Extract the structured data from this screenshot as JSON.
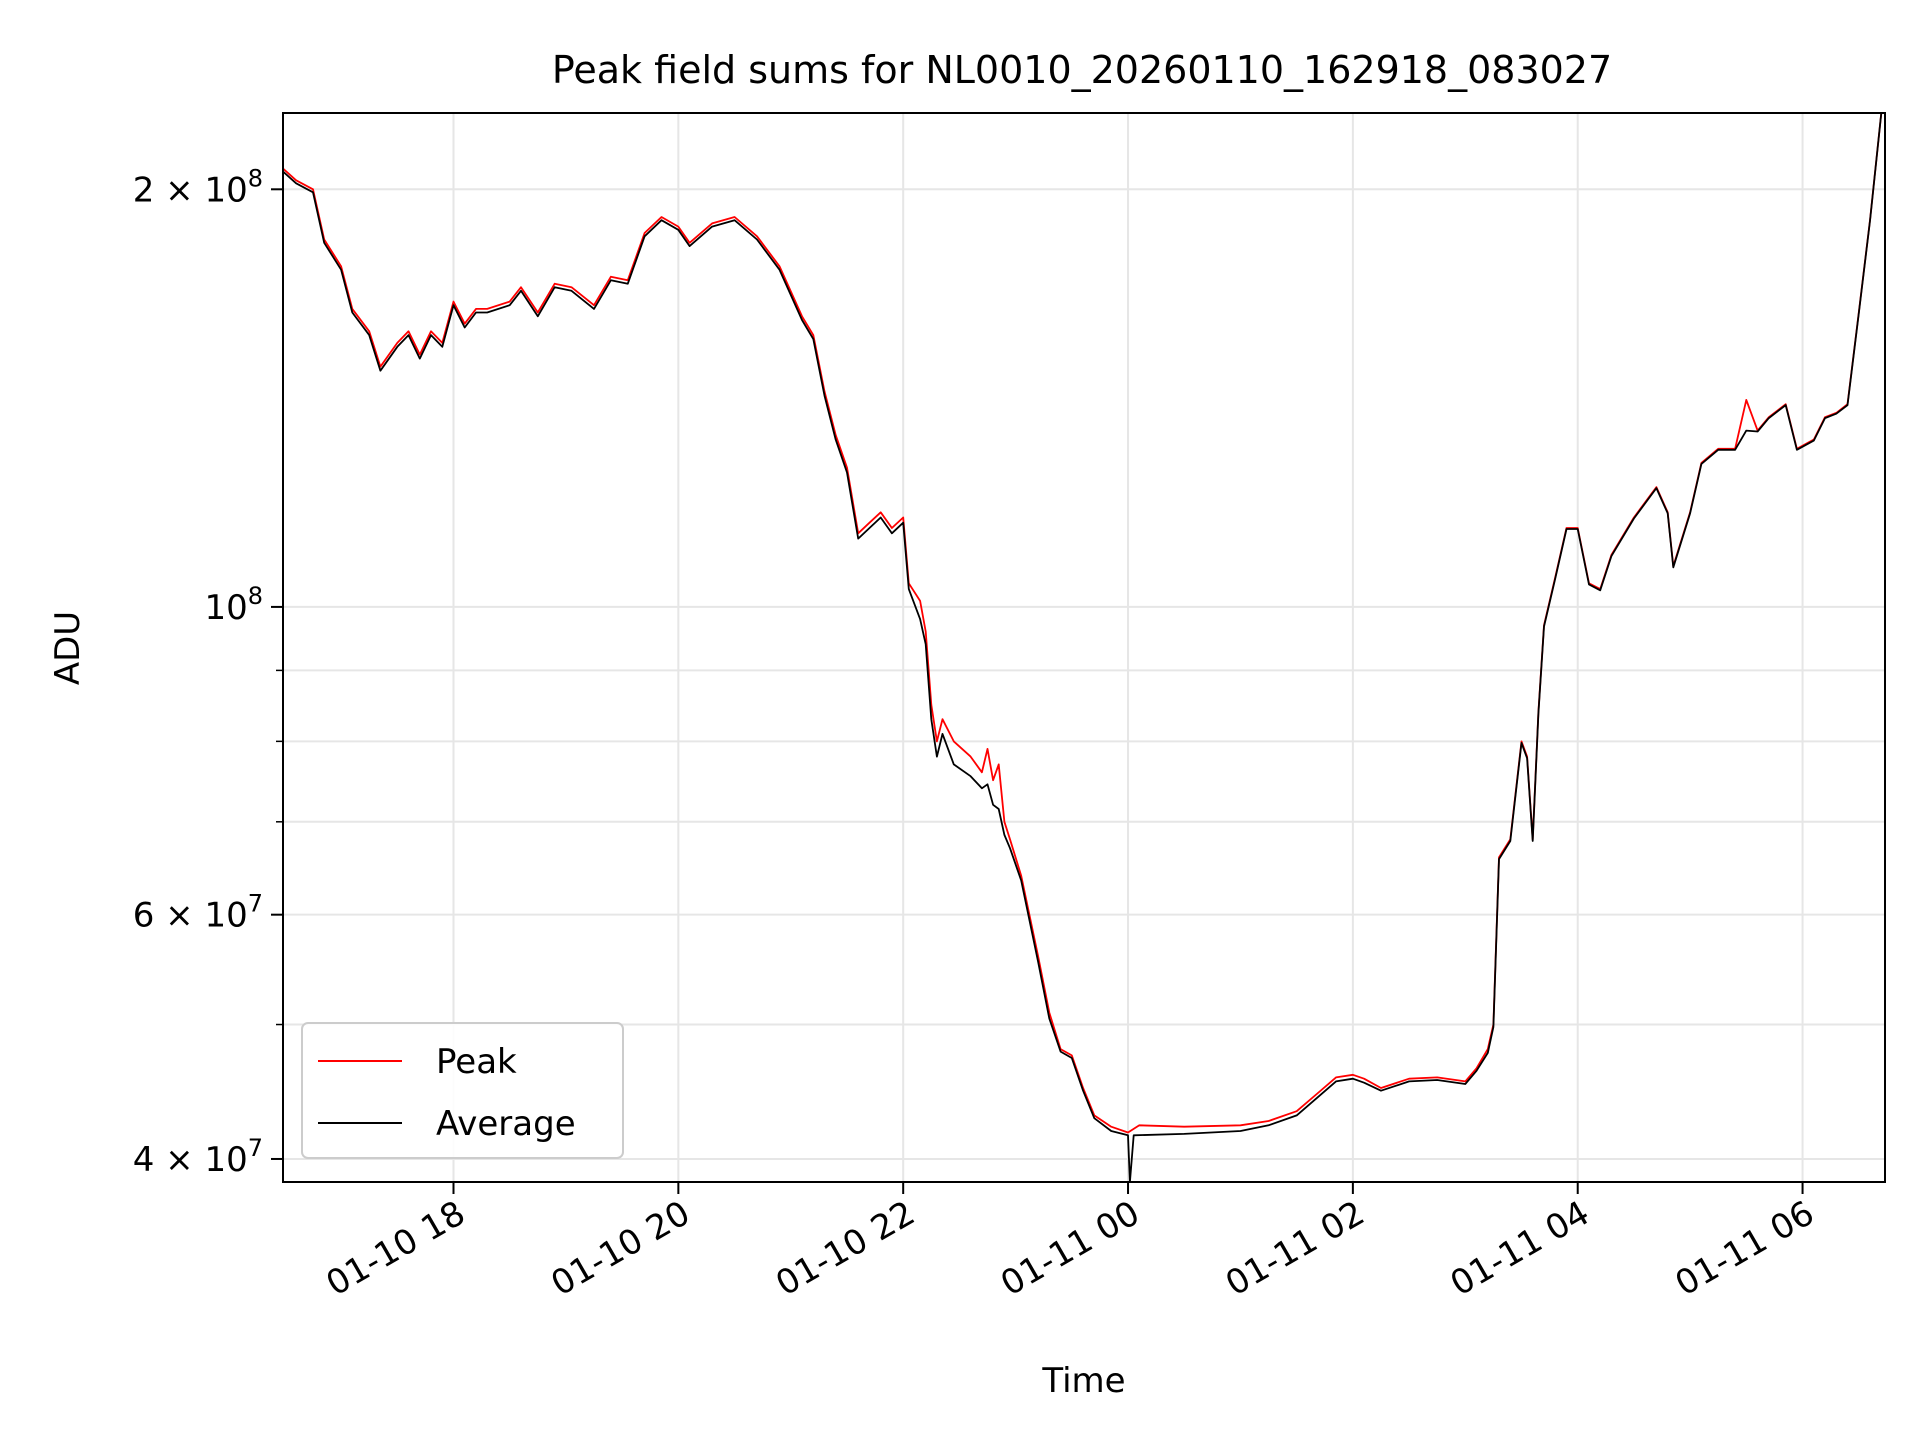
{
  "chart_data": {
    "type": "line",
    "title": "Peak field sums for NL0010_20260110_162918_083027",
    "xlabel": "Time",
    "ylabel": "ADU",
    "yscale": "log",
    "grid": true,
    "legend_position": "lower-left",
    "xlim": [
      "2026-01-10 16:29",
      "2026-01-11 06:44"
    ],
    "ylim": [
      38500000,
      227000000
    ],
    "x_ticks": [
      {
        "t": "2026-01-10 18:00",
        "label": "01-10 18"
      },
      {
        "t": "2026-01-10 20:00",
        "label": "01-10 20"
      },
      {
        "t": "2026-01-10 22:00",
        "label": "01-10 22"
      },
      {
        "t": "2026-01-11 00:00",
        "label": "01-11 00"
      },
      {
        "t": "2026-01-11 02:00",
        "label": "01-11 02"
      },
      {
        "t": "2026-01-11 04:00",
        "label": "01-11 04"
      },
      {
        "t": "2026-01-11 06:00",
        "label": "01-11 06"
      }
    ],
    "y_major_ticks": [
      {
        "value": 40000000,
        "mantissa": "4",
        "exponent": "7"
      },
      {
        "value": 60000000,
        "mantissa": "6",
        "exponent": "7"
      },
      {
        "value": 100000000,
        "mantissa": "",
        "exponent": "8"
      },
      {
        "value": 200000000,
        "mantissa": "2",
        "exponent": "8"
      }
    ],
    "y_minor_ticks": [
      50000000,
      70000000,
      80000000,
      90000000
    ],
    "series": [
      {
        "name": "Peak",
        "color": "#ff0000",
        "points": [
          [
            "2026-01-10 16:29",
            207000000
          ],
          [
            "2026-01-10 16:36",
            203000000
          ],
          [
            "2026-01-10 16:45",
            200000000
          ],
          [
            "2026-01-10 16:51",
            184000000
          ],
          [
            "2026-01-10 17:00",
            176000000
          ],
          [
            "2026-01-10 17:06",
            164000000
          ],
          [
            "2026-01-10 17:15",
            158000000
          ],
          [
            "2026-01-10 17:21",
            149000000
          ],
          [
            "2026-01-10 17:30",
            155000000
          ],
          [
            "2026-01-10 17:36",
            158000000
          ],
          [
            "2026-01-10 17:42",
            152000000
          ],
          [
            "2026-01-10 17:48",
            158000000
          ],
          [
            "2026-01-10 17:54",
            155000000
          ],
          [
            "2026-01-10 18:00",
            166000000
          ],
          [
            "2026-01-10 18:06",
            160000000
          ],
          [
            "2026-01-10 18:12",
            164000000
          ],
          [
            "2026-01-10 18:18",
            164000000
          ],
          [
            "2026-01-10 18:30",
            166000000
          ],
          [
            "2026-01-10 18:36",
            170000000
          ],
          [
            "2026-01-10 18:45",
            163000000
          ],
          [
            "2026-01-10 18:54",
            171000000
          ],
          [
            "2026-01-10 19:03",
            170000000
          ],
          [
            "2026-01-10 19:15",
            165000000
          ],
          [
            "2026-01-10 19:24",
            173000000
          ],
          [
            "2026-01-10 19:33",
            172000000
          ],
          [
            "2026-01-10 19:42",
            186000000
          ],
          [
            "2026-01-10 19:51",
            191000000
          ],
          [
            "2026-01-10 20:00",
            188000000
          ],
          [
            "2026-01-10 20:06",
            183000000
          ],
          [
            "2026-01-10 20:18",
            189000000
          ],
          [
            "2026-01-10 20:30",
            191000000
          ],
          [
            "2026-01-10 20:42",
            185000000
          ],
          [
            "2026-01-10 20:54",
            176000000
          ],
          [
            "2026-01-10 21:06",
            162000000
          ],
          [
            "2026-01-10 21:12",
            157000000
          ],
          [
            "2026-01-10 21:18",
            143000000
          ],
          [
            "2026-01-10 21:24",
            133000000
          ],
          [
            "2026-01-10 21:30",
            126000000
          ],
          [
            "2026-01-10 21:36",
            113000000
          ],
          [
            "2026-01-10 21:42",
            115000000
          ],
          [
            "2026-01-10 21:48",
            117000000
          ],
          [
            "2026-01-10 21:54",
            114000000
          ],
          [
            "2026-01-10 22:00",
            116000000
          ],
          [
            "2026-01-10 22:03",
            104000000
          ],
          [
            "2026-01-10 22:09",
            101000000
          ],
          [
            "2026-01-10 22:12",
            96000000
          ],
          [
            "2026-01-10 22:15",
            85000000
          ],
          [
            "2026-01-10 22:18",
            80000000
          ],
          [
            "2026-01-10 22:21",
            83000000
          ],
          [
            "2026-01-10 22:27",
            80000000
          ],
          [
            "2026-01-10 22:36",
            78000000
          ],
          [
            "2026-01-10 22:42",
            76000000
          ],
          [
            "2026-01-10 22:45",
            79000000
          ],
          [
            "2026-01-10 22:48",
            75000000
          ],
          [
            "2026-01-10 22:51",
            77000000
          ],
          [
            "2026-01-10 22:54",
            70000000
          ],
          [
            "2026-01-10 22:57",
            68000000
          ],
          [
            "2026-01-10 23:03",
            64000000
          ],
          [
            "2026-01-10 23:12",
            56000000
          ],
          [
            "2026-01-10 23:18",
            51000000
          ],
          [
            "2026-01-10 23:24",
            48000000
          ],
          [
            "2026-01-10 23:30",
            47500000
          ],
          [
            "2026-01-10 23:36",
            45000000
          ],
          [
            "2026-01-10 23:42",
            43000000
          ],
          [
            "2026-01-10 23:51",
            42200000
          ],
          [
            "2026-01-11 00:00",
            41800000
          ],
          [
            "2026-01-11 00:06",
            42300000
          ],
          [
            "2026-01-11 00:30",
            42200000
          ],
          [
            "2026-01-11 01:00",
            42300000
          ],
          [
            "2026-01-11 01:15",
            42600000
          ],
          [
            "2026-01-11 01:30",
            43300000
          ],
          [
            "2026-01-11 01:42",
            44700000
          ],
          [
            "2026-01-11 01:51",
            45800000
          ],
          [
            "2026-01-11 02:00",
            46000000
          ],
          [
            "2026-01-11 02:06",
            45700000
          ],
          [
            "2026-01-11 02:15",
            45000000
          ],
          [
            "2026-01-11 02:30",
            45700000
          ],
          [
            "2026-01-11 02:45",
            45800000
          ],
          [
            "2026-01-11 03:00",
            45500000
          ],
          [
            "2026-01-11 03:06",
            46500000
          ],
          [
            "2026-01-11 03:12",
            48000000
          ],
          [
            "2026-01-11 03:15",
            50000000
          ],
          [
            "2026-01-11 03:18",
            66000000
          ],
          [
            "2026-01-11 03:24",
            68000000
          ],
          [
            "2026-01-11 03:30",
            80000000
          ],
          [
            "2026-01-11 03:33",
            78000000
          ],
          [
            "2026-01-11 03:36",
            68000000
          ],
          [
            "2026-01-11 03:39",
            84000000
          ],
          [
            "2026-01-11 03:42",
            97000000
          ],
          [
            "2026-01-11 03:48",
            105000000
          ],
          [
            "2026-01-11 03:54",
            114000000
          ],
          [
            "2026-01-11 04:00",
            114000000
          ],
          [
            "2026-01-11 04:06",
            104000000
          ],
          [
            "2026-01-11 04:12",
            103000000
          ],
          [
            "2026-01-11 04:18",
            109000000
          ],
          [
            "2026-01-11 04:30",
            116000000
          ],
          [
            "2026-01-11 04:42",
            122000000
          ],
          [
            "2026-01-11 04:48",
            117000000
          ],
          [
            "2026-01-11 04:51",
            107000000
          ],
          [
            "2026-01-11 05:00",
            117000000
          ],
          [
            "2026-01-11 05:06",
            127000000
          ],
          [
            "2026-01-11 05:15",
            130000000
          ],
          [
            "2026-01-11 05:24",
            130000000
          ],
          [
            "2026-01-11 05:30",
            141000000
          ],
          [
            "2026-01-11 05:36",
            134000000
          ],
          [
            "2026-01-11 05:42",
            137000000
          ],
          [
            "2026-01-11 05:51",
            140000000
          ],
          [
            "2026-01-11 05:57",
            130000000
          ],
          [
            "2026-01-11 06:06",
            132000000
          ],
          [
            "2026-01-11 06:12",
            137000000
          ],
          [
            "2026-01-11 06:18",
            138000000
          ],
          [
            "2026-01-11 06:24",
            140000000
          ],
          [
            "2026-01-11 06:30",
            163000000
          ],
          [
            "2026-01-11 06:36",
            190000000
          ],
          [
            "2026-01-11 06:42",
            227000000
          ]
        ]
      },
      {
        "name": "Average",
        "color": "#000000",
        "points": [
          [
            "2026-01-10 16:29",
            206000000
          ],
          [
            "2026-01-10 16:36",
            202000000
          ],
          [
            "2026-01-10 16:45",
            199000000
          ],
          [
            "2026-01-10 16:51",
            183000000
          ],
          [
            "2026-01-10 17:00",
            175000000
          ],
          [
            "2026-01-10 17:06",
            163000000
          ],
          [
            "2026-01-10 17:15",
            157000000
          ],
          [
            "2026-01-10 17:21",
            148000000
          ],
          [
            "2026-01-10 17:30",
            154000000
          ],
          [
            "2026-01-10 17:36",
            157000000
          ],
          [
            "2026-01-10 17:42",
            151000000
          ],
          [
            "2026-01-10 17:48",
            157000000
          ],
          [
            "2026-01-10 17:54",
            154000000
          ],
          [
            "2026-01-10 18:00",
            165000000
          ],
          [
            "2026-01-10 18:06",
            159000000
          ],
          [
            "2026-01-10 18:12",
            163000000
          ],
          [
            "2026-01-10 18:18",
            163000000
          ],
          [
            "2026-01-10 18:30",
            165000000
          ],
          [
            "2026-01-10 18:36",
            169000000
          ],
          [
            "2026-01-10 18:45",
            162000000
          ],
          [
            "2026-01-10 18:54",
            170000000
          ],
          [
            "2026-01-10 19:03",
            169000000
          ],
          [
            "2026-01-10 19:15",
            164000000
          ],
          [
            "2026-01-10 19:24",
            172000000
          ],
          [
            "2026-01-10 19:33",
            171000000
          ],
          [
            "2026-01-10 19:42",
            185000000
          ],
          [
            "2026-01-10 19:51",
            190000000
          ],
          [
            "2026-01-10 20:00",
            187000000
          ],
          [
            "2026-01-10 20:06",
            182000000
          ],
          [
            "2026-01-10 20:18",
            188000000
          ],
          [
            "2026-01-10 20:30",
            190000000
          ],
          [
            "2026-01-10 20:42",
            184000000
          ],
          [
            "2026-01-10 20:54",
            175000000
          ],
          [
            "2026-01-10 21:06",
            161000000
          ],
          [
            "2026-01-10 21:12",
            156000000
          ],
          [
            "2026-01-10 21:18",
            142000000
          ],
          [
            "2026-01-10 21:24",
            132000000
          ],
          [
            "2026-01-10 21:30",
            125000000
          ],
          [
            "2026-01-10 21:36",
            112000000
          ],
          [
            "2026-01-10 21:42",
            114000000
          ],
          [
            "2026-01-10 21:48",
            116000000
          ],
          [
            "2026-01-10 21:54",
            113000000
          ],
          [
            "2026-01-10 22:00",
            115000000
          ],
          [
            "2026-01-10 22:03",
            103000000
          ],
          [
            "2026-01-10 22:09",
            98000000
          ],
          [
            "2026-01-10 22:12",
            94000000
          ],
          [
            "2026-01-10 22:15",
            83000000
          ],
          [
            "2026-01-10 22:18",
            78000000
          ],
          [
            "2026-01-10 22:21",
            81000000
          ],
          [
            "2026-01-10 22:27",
            77000000
          ],
          [
            "2026-01-10 22:36",
            75500000
          ],
          [
            "2026-01-10 22:42",
            74000000
          ],
          [
            "2026-01-10 22:45",
            74500000
          ],
          [
            "2026-01-10 22:48",
            72000000
          ],
          [
            "2026-01-10 22:51",
            71500000
          ],
          [
            "2026-01-10 22:54",
            68500000
          ],
          [
            "2026-01-10 22:57",
            67000000
          ],
          [
            "2026-01-10 23:03",
            63500000
          ],
          [
            "2026-01-10 23:12",
            55500000
          ],
          [
            "2026-01-10 23:18",
            50500000
          ],
          [
            "2026-01-10 23:24",
            47800000
          ],
          [
            "2026-01-10 23:30",
            47300000
          ],
          [
            "2026-01-10 23:36",
            44800000
          ],
          [
            "2026-01-10 23:42",
            42800000
          ],
          [
            "2026-01-10 23:51",
            41900000
          ],
          [
            "2026-01-11 00:00",
            41600000
          ],
          [
            "2026-01-11 00:01",
            38500000
          ],
          [
            "2026-01-11 00:03",
            41600000
          ],
          [
            "2026-01-11 00:30",
            41700000
          ],
          [
            "2026-01-11 01:00",
            41900000
          ],
          [
            "2026-01-11 01:15",
            42300000
          ],
          [
            "2026-01-11 01:30",
            43000000
          ],
          [
            "2026-01-11 01:42",
            44400000
          ],
          [
            "2026-01-11 01:51",
            45500000
          ],
          [
            "2026-01-11 02:00",
            45700000
          ],
          [
            "2026-01-11 02:06",
            45400000
          ],
          [
            "2026-01-11 02:15",
            44800000
          ],
          [
            "2026-01-11 02:30",
            45500000
          ],
          [
            "2026-01-11 02:45",
            45600000
          ],
          [
            "2026-01-11 03:00",
            45300000
          ],
          [
            "2026-01-11 03:06",
            46300000
          ],
          [
            "2026-01-11 03:12",
            47700000
          ],
          [
            "2026-01-11 03:15",
            49800000
          ],
          [
            "2026-01-11 03:18",
            65800000
          ],
          [
            "2026-01-11 03:24",
            67800000
          ],
          [
            "2026-01-11 03:30",
            79800000
          ],
          [
            "2026-01-11 03:33",
            77800000
          ],
          [
            "2026-01-11 03:36",
            67800000
          ],
          [
            "2026-01-11 03:39",
            83800000
          ],
          [
            "2026-01-11 03:42",
            96800000
          ],
          [
            "2026-01-11 03:48",
            104800000
          ],
          [
            "2026-01-11 03:54",
            113800000
          ],
          [
            "2026-01-11 04:00",
            113800000
          ],
          [
            "2026-01-11 04:06",
            103800000
          ],
          [
            "2026-01-11 04:12",
            102800000
          ],
          [
            "2026-01-11 04:18",
            108800000
          ],
          [
            "2026-01-11 04:30",
            115800000
          ],
          [
            "2026-01-11 04:42",
            121800000
          ],
          [
            "2026-01-11 04:48",
            116800000
          ],
          [
            "2026-01-11 04:51",
            106800000
          ],
          [
            "2026-01-11 05:00",
            116800000
          ],
          [
            "2026-01-11 05:06",
            126800000
          ],
          [
            "2026-01-11 05:15",
            129800000
          ],
          [
            "2026-01-11 05:24",
            129800000
          ],
          [
            "2026-01-11 05:30",
            134000000
          ],
          [
            "2026-01-11 05:36",
            133800000
          ],
          [
            "2026-01-11 05:42",
            136800000
          ],
          [
            "2026-01-11 05:51",
            139800000
          ],
          [
            "2026-01-11 05:57",
            129800000
          ],
          [
            "2026-01-11 06:06",
            131800000
          ],
          [
            "2026-01-11 06:12",
            136800000
          ],
          [
            "2026-01-11 06:18",
            137800000
          ],
          [
            "2026-01-11 06:24",
            139800000
          ],
          [
            "2026-01-11 06:30",
            162800000
          ],
          [
            "2026-01-11 06:36",
            189800000
          ],
          [
            "2026-01-11 06:42",
            227000000
          ]
        ]
      }
    ]
  }
}
